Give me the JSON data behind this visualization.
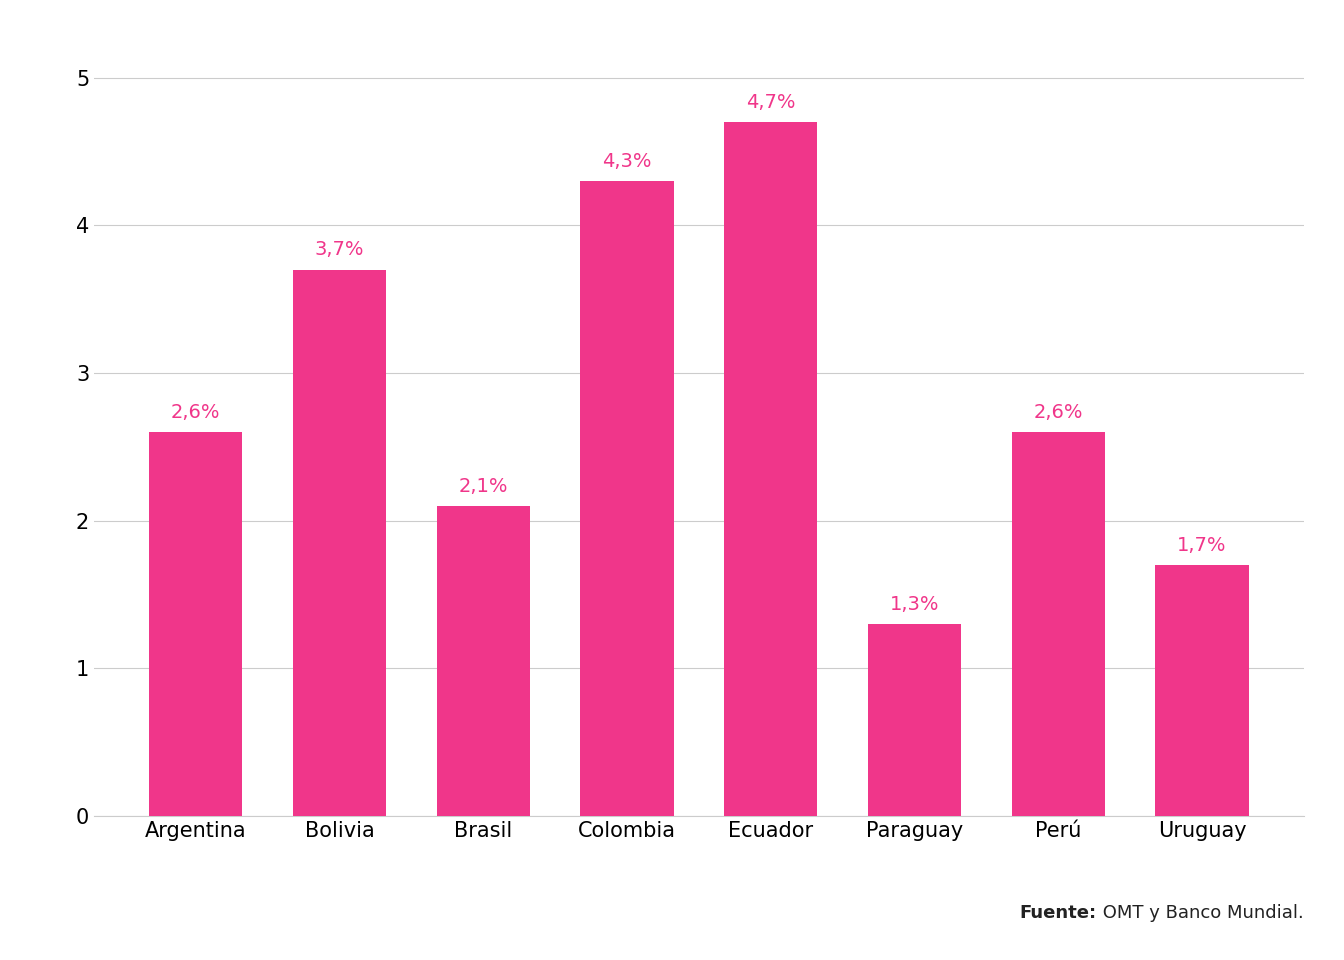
{
  "categories": [
    "Argentina",
    "Bolivia",
    "Brasil",
    "Colombia",
    "Ecuador",
    "Paraguay",
    "Perú",
    "Uruguay"
  ],
  "values": [
    2.6,
    3.7,
    2.1,
    4.3,
    4.7,
    1.3,
    2.6,
    1.7
  ],
  "labels": [
    "2,6%",
    "3,7%",
    "2,1%",
    "4,3%",
    "4,7%",
    "1,3%",
    "2,6%",
    "1,7%"
  ],
  "bar_color": "#F0368A",
  "label_color": "#F0368A",
  "background_color": "#FFFFFF",
  "ylim": [
    0,
    5.2
  ],
  "yticks": [
    0,
    1,
    2,
    3,
    4,
    5
  ],
  "grid_color": "#CCCCCC",
  "tick_label_fontsize": 15,
  "bar_label_fontsize": 14,
  "source_text_bold": "Fuente:",
  "source_text_regular": " OMT y Banco Mundial.",
  "source_fontsize": 13,
  "bar_width": 0.65
}
